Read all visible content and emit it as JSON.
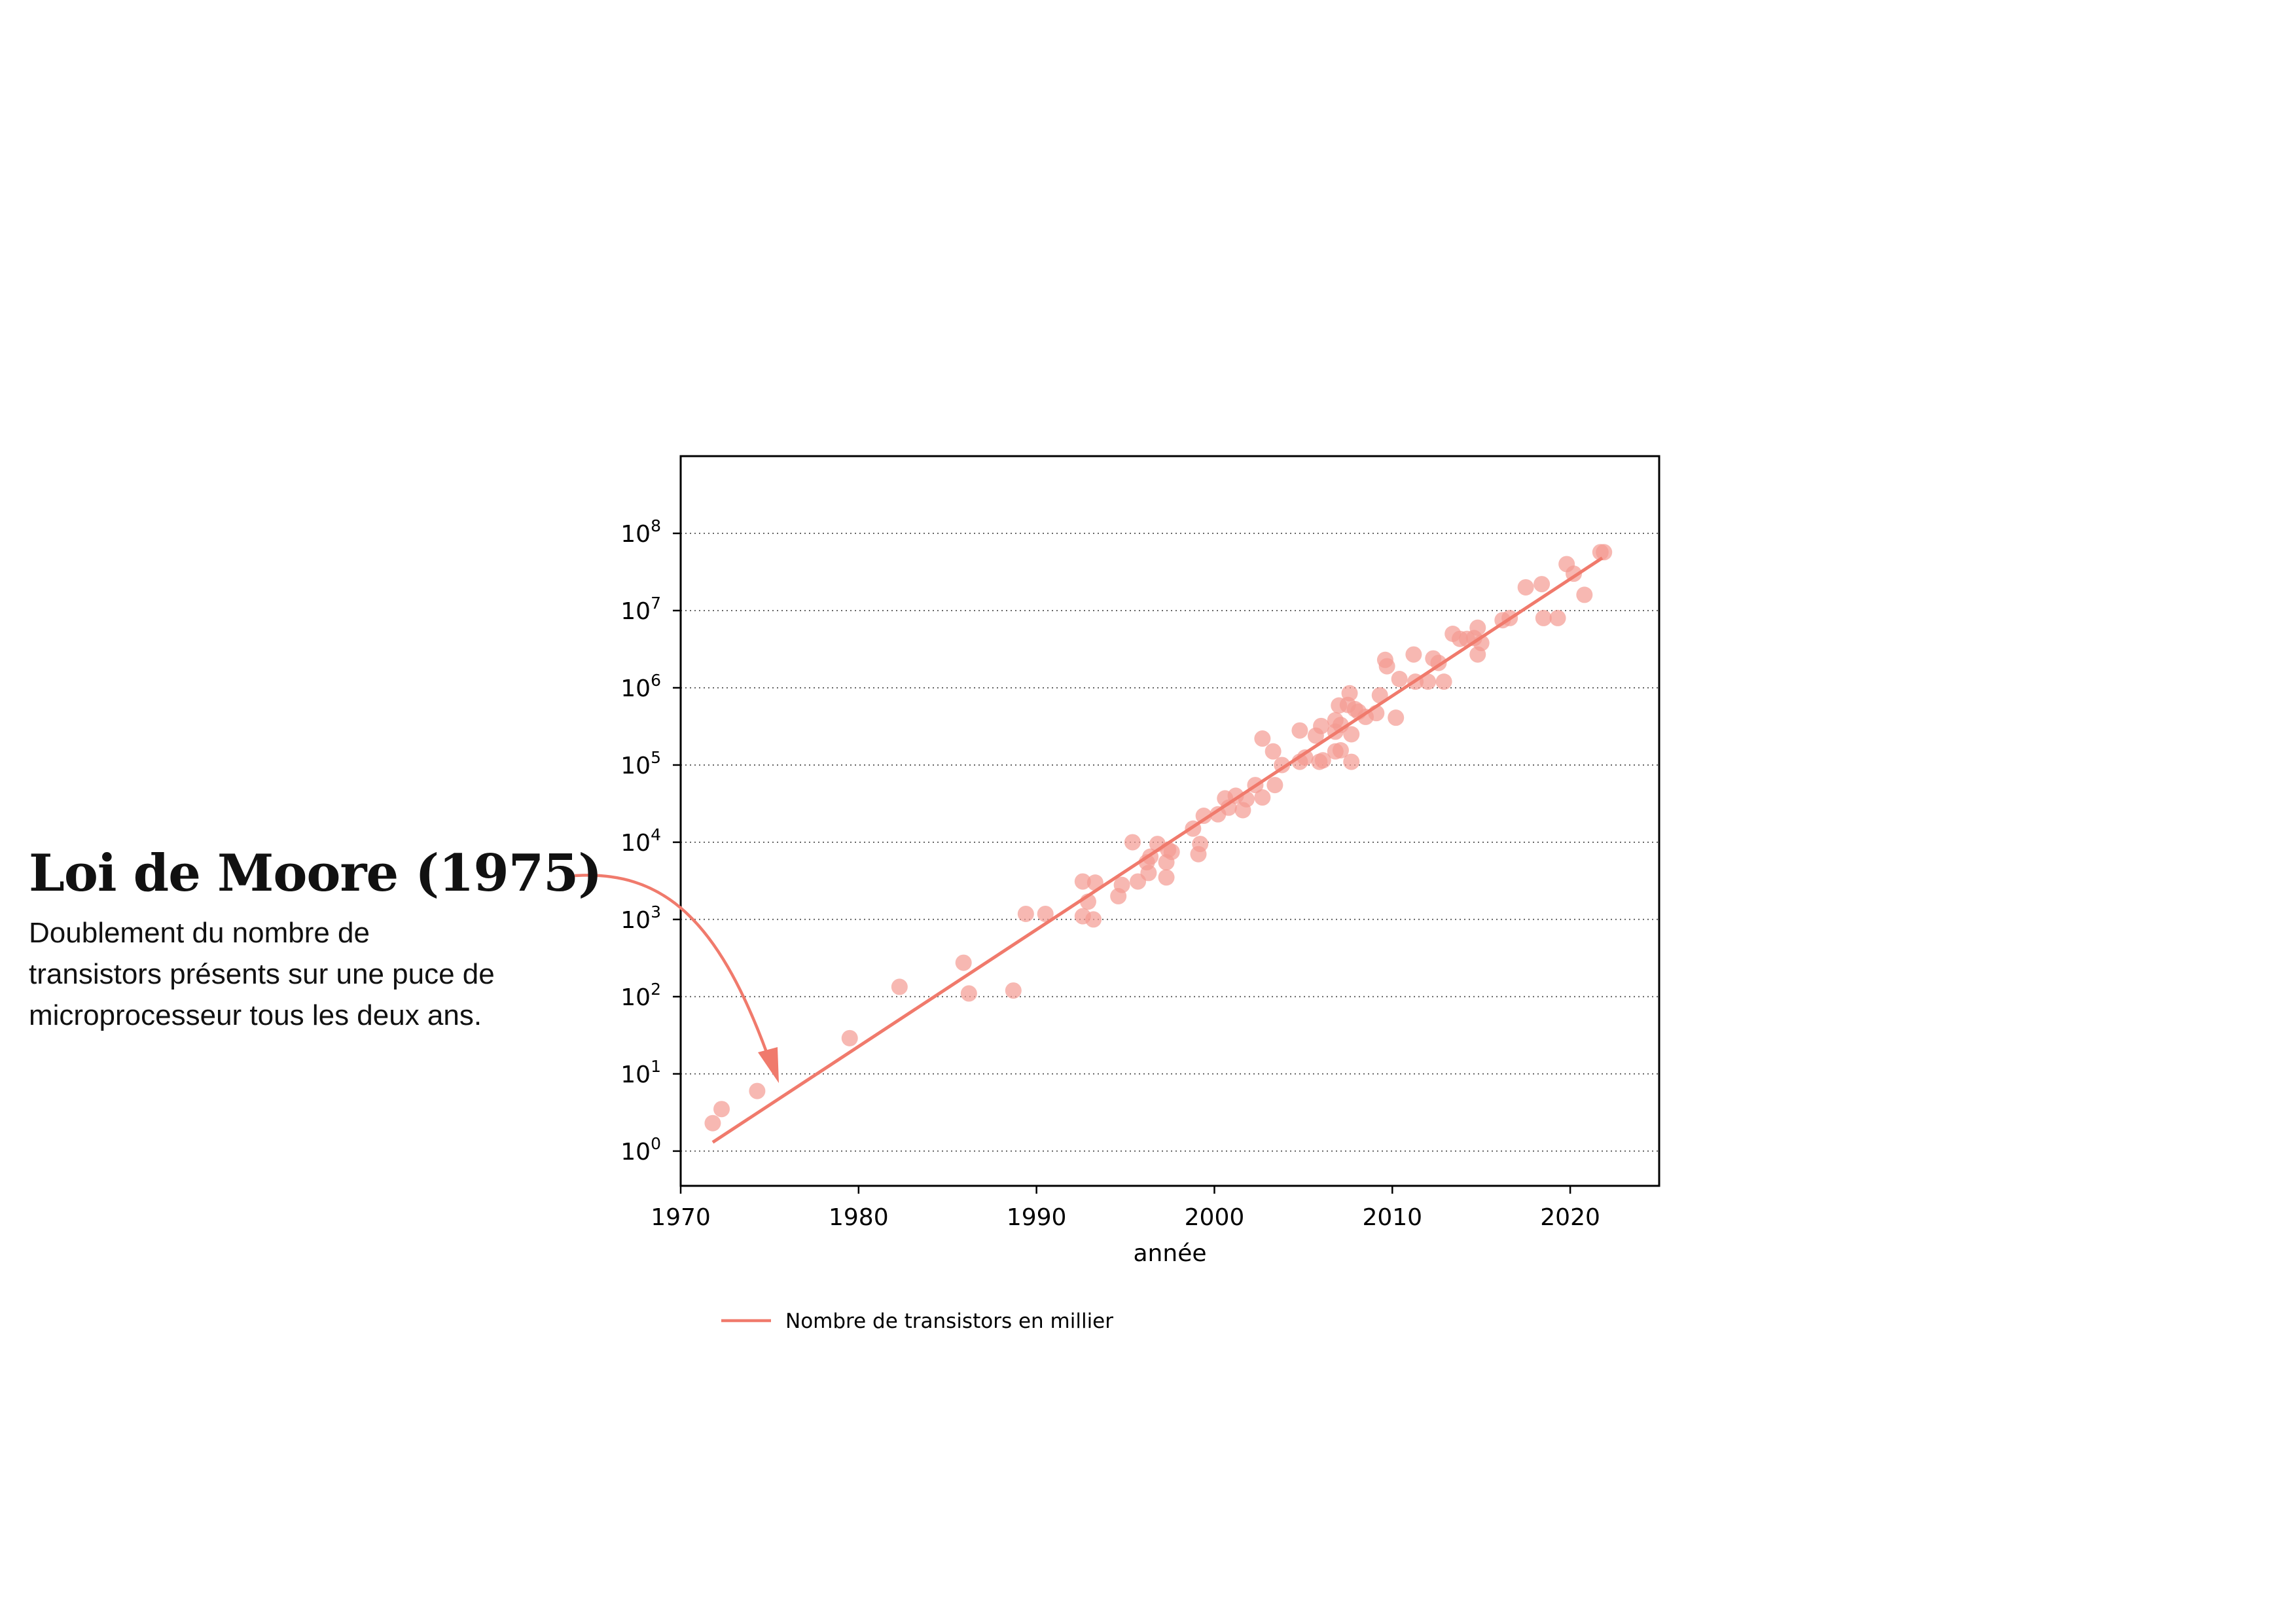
{
  "annotation": {
    "title": "Loi de Moore (1975)",
    "body": "Doublement du nombre de\ntransistors présents sur une puce de\nmicroprocesseur tous les deux ans."
  },
  "chart_data": {
    "type": "scatter",
    "title": "",
    "xlabel": "année",
    "ylabel": "",
    "xlim": [
      1970,
      2025
    ],
    "ylim_log10": [
      -0.45,
      9.0
    ],
    "yscale": "log",
    "grid": "horizontal dotted",
    "legend_placement": "below",
    "x_ticks": [
      1970,
      1980,
      1990,
      2000,
      2010,
      2020
    ],
    "y_ticks": [
      {
        "base": "10",
        "exp": "0"
      },
      {
        "base": "10",
        "exp": "1"
      },
      {
        "base": "10",
        "exp": "2"
      },
      {
        "base": "10",
        "exp": "3"
      },
      {
        "base": "10",
        "exp": "4"
      },
      {
        "base": "10",
        "exp": "5"
      },
      {
        "base": "10",
        "exp": "6"
      },
      {
        "base": "10",
        "exp": "7"
      },
      {
        "base": "10",
        "exp": "8"
      }
    ],
    "colors": {
      "series": "#f07a6c",
      "points": "#f49a92"
    },
    "series": [
      {
        "name": "Nombre de transistors en millier",
        "type": "line",
        "x": [
          1971.8,
          2021.8
        ],
        "y": [
          1.3,
          48000000
        ]
      },
      {
        "type": "scatter",
        "points": [
          [
            1971.8,
            2.3
          ],
          [
            1972.3,
            3.5
          ],
          [
            1974.3,
            6
          ],
          [
            1979.5,
            29
          ],
          [
            1982.3,
            134
          ],
          [
            1985.9,
            275
          ],
          [
            1986.2,
            110
          ],
          [
            1988.7,
            120
          ],
          [
            1989.4,
            1180
          ],
          [
            1990.5,
            1180
          ],
          [
            1992.6,
            3100
          ],
          [
            1992.6,
            1100
          ],
          [
            1992.9,
            1700
          ],
          [
            1993.2,
            1000
          ],
          [
            1993.3,
            3000
          ],
          [
            1994.6,
            2000
          ],
          [
            1994.8,
            2800
          ],
          [
            1995.4,
            10000
          ],
          [
            1995.7,
            3100
          ],
          [
            1996.2,
            5500
          ],
          [
            1996.3,
            4000
          ],
          [
            1996.4,
            6500
          ],
          [
            1996.8,
            9500
          ],
          [
            1997.3,
            3500
          ],
          [
            1997.3,
            5500
          ],
          [
            1997.4,
            8000
          ],
          [
            1997.6,
            7500
          ],
          [
            1998.8,
            15000
          ],
          [
            1999.1,
            7000
          ],
          [
            1999.2,
            9500
          ],
          [
            1999.4,
            22000
          ],
          [
            2000.2,
            23000
          ],
          [
            2000.6,
            37000
          ],
          [
            2000.8,
            28000
          ],
          [
            2001.2,
            40000
          ],
          [
            2001.6,
            26000
          ],
          [
            2001.8,
            36000
          ],
          [
            2002.3,
            55000
          ],
          [
            2002.7,
            220000
          ],
          [
            2002.7,
            38000
          ],
          [
            2003.3,
            150000
          ],
          [
            2003.4,
            55000
          ],
          [
            2003.8,
            100000
          ],
          [
            2004.8,
            280000
          ],
          [
            2004.8,
            110000
          ],
          [
            2005.1,
            125000
          ],
          [
            2005.7,
            240000
          ],
          [
            2005.9,
            110000
          ],
          [
            2006.0,
            320000
          ],
          [
            2006.1,
            115000
          ],
          [
            2006.8,
            380000
          ],
          [
            2006.8,
            150000
          ],
          [
            2006.8,
            270000
          ],
          [
            2007.0,
            590000
          ],
          [
            2007.1,
            330000
          ],
          [
            2007.1,
            155000
          ],
          [
            2007.5,
            600000
          ],
          [
            2007.6,
            850000
          ],
          [
            2007.7,
            110000
          ],
          [
            2007.7,
            250000
          ],
          [
            2007.9,
            530000
          ],
          [
            2008.1,
            490000
          ],
          [
            2008.5,
            420000
          ],
          [
            2009.1,
            470000
          ],
          [
            2009.3,
            800000
          ],
          [
            2009.6,
            2300000
          ],
          [
            2009.7,
            1900000
          ],
          [
            2010.2,
            410000
          ],
          [
            2010.4,
            1300000
          ],
          [
            2011.2,
            2700000
          ],
          [
            2011.3,
            1200000
          ],
          [
            2012.0,
            1200000
          ],
          [
            2012.3,
            2400000
          ],
          [
            2012.6,
            2100000
          ],
          [
            2012.9,
            1200000
          ],
          [
            2013.4,
            5000000
          ],
          [
            2013.8,
            4300000
          ],
          [
            2014.2,
            4300000
          ],
          [
            2014.6,
            4400000
          ],
          [
            2014.8,
            2700000
          ],
          [
            2014.8,
            6000000
          ],
          [
            2015.0,
            3800000
          ],
          [
            2016.2,
            7500000
          ],
          [
            2016.6,
            8000000
          ],
          [
            2017.5,
            20000000
          ],
          [
            2018.4,
            22000000
          ],
          [
            2018.5,
            8000000
          ],
          [
            2019.3,
            8000000
          ],
          [
            2019.8,
            40000000
          ],
          [
            2020.2,
            30000000
          ],
          [
            2020.8,
            16000000
          ],
          [
            2021.7,
            57000000
          ],
          [
            2021.9,
            57000000
          ]
        ]
      }
    ]
  }
}
